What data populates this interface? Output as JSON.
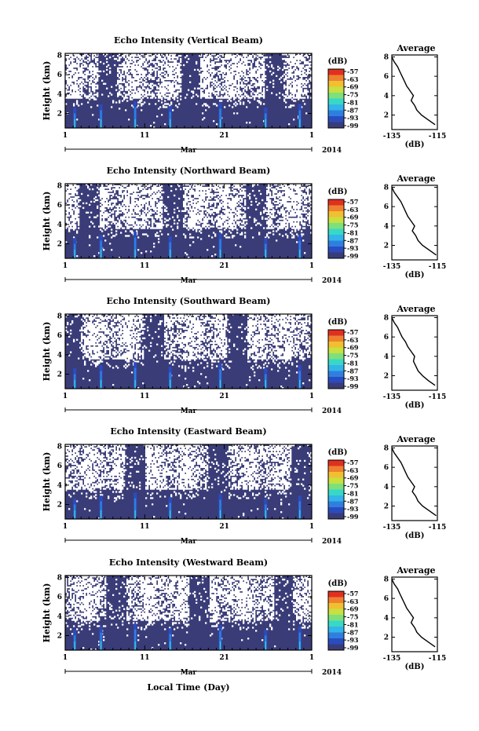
{
  "figure": {
    "xlabel": "Local Time (Day)",
    "month_label": "Mar",
    "year_label": "2014",
    "x_ticks": [
      "1",
      "11",
      "21",
      "1"
    ],
    "colorbar_unit": "(dB)",
    "profile_title": "Average",
    "profile_xlabel": "(dB)",
    "colors": {
      "background_low": "#3a3c78",
      "no_data": "#ffffff",
      "colormap": [
        "#3a3c78",
        "#2a4cc0",
        "#2f7fe0",
        "#33b5e8",
        "#38d8c8",
        "#7ee07a",
        "#c8e040",
        "#f0c030",
        "#f08030",
        "#e03020"
      ]
    }
  },
  "chart_data": [
    {
      "type": "heatmap",
      "title": "Echo Intensity (Vertical Beam)",
      "ylabel": "Height (km)",
      "y_ticks": [
        2,
        4,
        6,
        8
      ],
      "ylim": [
        0.5,
        8.2
      ],
      "xlim": [
        1,
        32
      ],
      "colorbar_ticks": [
        "-57",
        "-63",
        "-69",
        "-75",
        "-81",
        "-87",
        "-93",
        "-99"
      ],
      "bright_stripes_day": [
        2.2,
        5.5,
        9.8,
        14.2,
        20.5,
        26.2,
        30.5
      ],
      "profile": {
        "xlim": [
          -135,
          -115
        ],
        "x_ticks": [
          "-135",
          "-115"
        ],
        "y_ticks": [
          2,
          4,
          6,
          8
        ],
        "height": [
          1.0,
          1.5,
          2.0,
          2.5,
          3.0,
          3.5,
          4.0,
          4.5,
          5.0,
          5.5,
          6.0,
          6.5,
          7.0,
          7.5,
          8.0
        ],
        "value": [
          -116,
          -119,
          -122,
          -124,
          -125,
          -126.5,
          -125.5,
          -127,
          -128.5,
          -129.5,
          -130.5,
          -131.5,
          -132.5,
          -134,
          -135
        ]
      }
    },
    {
      "type": "heatmap",
      "title": "Echo Intensity (Northward Beam)",
      "ylabel": "Height (km)",
      "y_ticks": [
        2,
        4,
        6,
        8
      ],
      "ylim": [
        0.5,
        8.2
      ],
      "xlim": [
        1,
        32
      ],
      "colorbar_ticks": [
        "-57",
        "-63",
        "-69",
        "-75",
        "-81",
        "-87",
        "-93",
        "-99"
      ],
      "bright_stripes_day": [
        2.2,
        5.5,
        9.8,
        14.2,
        20.5,
        26.2,
        30.5
      ],
      "profile": {
        "xlim": [
          -135,
          -115
        ],
        "x_ticks": [
          "-135",
          "-115"
        ],
        "y_ticks": [
          2,
          4,
          6,
          8
        ],
        "height": [
          1.0,
          1.5,
          2.0,
          2.5,
          3.0,
          3.5,
          4.0,
          4.5,
          5.0,
          5.5,
          6.0,
          6.5,
          7.0,
          7.5,
          8.0
        ],
        "value": [
          -115.5,
          -118.5,
          -121.5,
          -123.5,
          -124.5,
          -126,
          -125,
          -126.5,
          -128,
          -129,
          -130,
          -131,
          -132.5,
          -134,
          -135
        ]
      }
    },
    {
      "type": "heatmap",
      "title": "Echo Intensity (Southward Beam)",
      "ylabel": "Height (km)",
      "y_ticks": [
        2,
        4,
        6,
        8
      ],
      "ylim": [
        0.5,
        8.2
      ],
      "xlim": [
        1,
        32
      ],
      "colorbar_ticks": [
        "-57",
        "-63",
        "-69",
        "-75",
        "-81",
        "-87",
        "-93",
        "-99"
      ],
      "bright_stripes_day": [
        2.2,
        5.5,
        9.8,
        14.2,
        20.5,
        26.2,
        30.5
      ],
      "profile": {
        "xlim": [
          -135,
          -115
        ],
        "x_ticks": [
          "-135",
          "-115"
        ],
        "y_ticks": [
          2,
          4,
          6,
          8
        ],
        "height": [
          1.0,
          1.5,
          2.0,
          2.5,
          3.0,
          3.5,
          4.0,
          4.5,
          5.0,
          5.5,
          6.0,
          6.5,
          7.0,
          7.5,
          8.0
        ],
        "value": [
          -116,
          -119,
          -121.5,
          -123.5,
          -124.5,
          -125.5,
          -125,
          -126.5,
          -128,
          -129,
          -130.5,
          -131.5,
          -132.5,
          -134,
          -135
        ]
      }
    },
    {
      "type": "heatmap",
      "title": "Echo Intensity (Eastward Beam)",
      "ylabel": "Height (km)",
      "y_ticks": [
        2,
        4,
        6,
        8
      ],
      "ylim": [
        0.5,
        8.2
      ],
      "xlim": [
        1,
        32
      ],
      "colorbar_ticks": [
        "-57",
        "-63",
        "-69",
        "-75",
        "-81",
        "-87",
        "-93",
        "-99"
      ],
      "bright_stripes_day": [
        2.2,
        5.5,
        9.8,
        14.2,
        20.5,
        26.2,
        30.5
      ],
      "profile": {
        "xlim": [
          -135,
          -115
        ],
        "x_ticks": [
          "-135",
          "-115"
        ],
        "y_ticks": [
          2,
          4,
          6,
          8
        ],
        "height": [
          1.0,
          1.5,
          2.0,
          2.5,
          3.0,
          3.5,
          4.0,
          4.5,
          5.0,
          5.5,
          6.0,
          6.5,
          7.0,
          7.5,
          8.0
        ],
        "value": [
          -115.5,
          -118.5,
          -121.5,
          -123.5,
          -124.5,
          -126,
          -125,
          -126.5,
          -128,
          -129,
          -130,
          -131,
          -132.5,
          -134,
          -135
        ]
      }
    },
    {
      "type": "heatmap",
      "title": "Echo Intensity (Westward Beam)",
      "ylabel": "Height (km)",
      "y_ticks": [
        2,
        4,
        6,
        8
      ],
      "ylim": [
        0.5,
        8.2
      ],
      "xlim": [
        1,
        32
      ],
      "colorbar_ticks": [
        "-57",
        "-63",
        "-69",
        "-75",
        "-81",
        "-87",
        "-93",
        "-99"
      ],
      "bright_stripes_day": [
        2.2,
        5.5,
        9.8,
        14.2,
        20.5,
        26.2,
        30.5
      ],
      "profile": {
        "xlim": [
          -135,
          -115
        ],
        "x_ticks": [
          "-135",
          "-115"
        ],
        "y_ticks": [
          2,
          4,
          6,
          8
        ],
        "height": [
          1.0,
          1.5,
          2.0,
          2.5,
          3.0,
          3.5,
          4.0,
          4.5,
          5.0,
          5.5,
          6.0,
          6.5,
          7.0,
          7.5,
          8.0
        ],
        "value": [
          -116,
          -119,
          -122,
          -124,
          -125,
          -126.5,
          -125.5,
          -127,
          -128.5,
          -129.5,
          -130.5,
          -131.5,
          -132.5,
          -134,
          -135
        ]
      }
    }
  ]
}
